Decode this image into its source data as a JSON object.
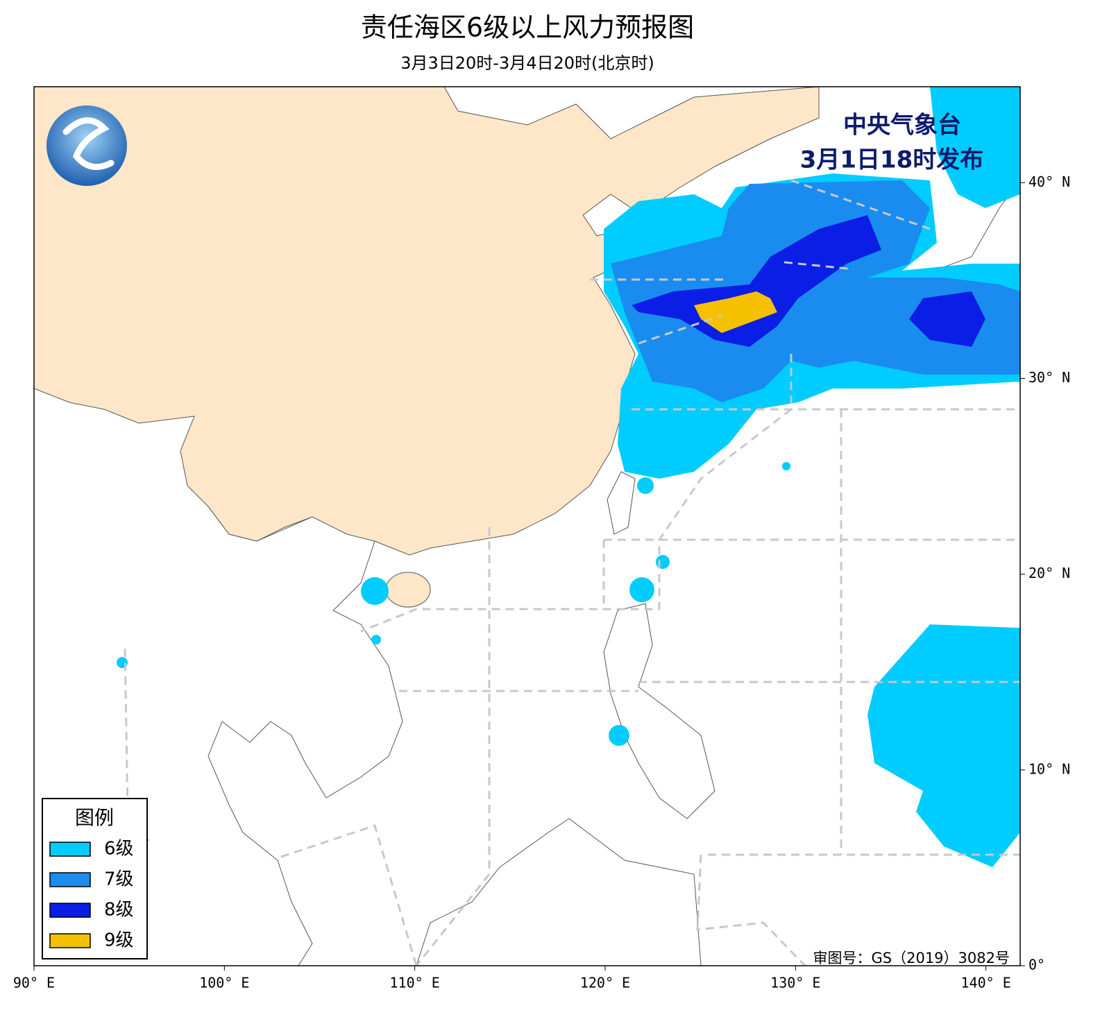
{
  "title": "责任海区6级以上风力预报图",
  "subtitle": "3月3日20时-3月4日20时(北京时)",
  "issuer": [
    "中央气象台",
    "3月1日18时发布"
  ],
  "approval": "审图号：GS（2019）3082号",
  "legend": {
    "title": "图例",
    "items": [
      {
        "label": "6级",
        "color": "#00ccff"
      },
      {
        "label": "7级",
        "color": "#1a8cf0"
      },
      {
        "label": "8级",
        "color": "#0a1ee6"
      },
      {
        "label": "9级",
        "color": "#f5c000"
      }
    ]
  },
  "map": {
    "xlim": [
      90,
      141.8
    ],
    "ylim": [
      0,
      44.9
    ],
    "xticks": [
      {
        "value": 90,
        "label": "90° E"
      },
      {
        "value": 100,
        "label": "100° E"
      },
      {
        "value": 110,
        "label": "110° E"
      },
      {
        "value": 120,
        "label": "120° E"
      },
      {
        "value": 130,
        "label": "130° E"
      },
      {
        "value": 140,
        "label": "140° E"
      }
    ],
    "yticks": [
      {
        "value": 0,
        "label": "0°"
      },
      {
        "value": 10,
        "label": "10° N"
      },
      {
        "value": 20,
        "label": "20° N"
      },
      {
        "value": 30,
        "label": "30° N"
      },
      {
        "value": 40,
        "label": "40° N"
      }
    ]
  }
}
